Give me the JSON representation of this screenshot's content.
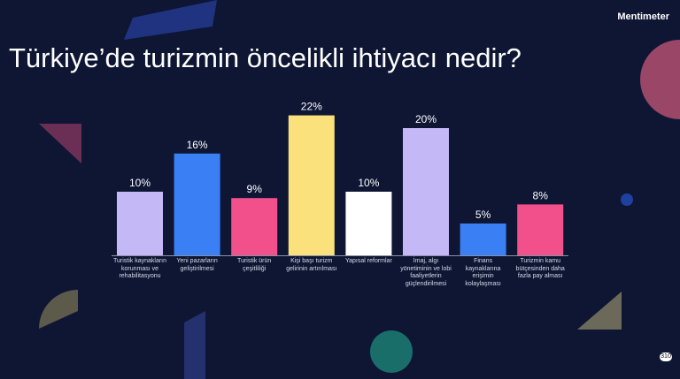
{
  "brand": "Mentimeter",
  "badge": "310",
  "chart_data": {
    "type": "bar",
    "title": "Türkiye’de turizmin öncelikli ihtiyacı nedir?",
    "categories": [
      "Turistik kaynakların korunması ve rehabilitasyonu",
      "Yeni pazarların geliştirilmesi",
      "Turistik ürün çeşitliliği",
      "Kişi başı turizm gelirinin artırılması",
      "Yapısal reformlar",
      "İmaj, algı yönetiminin ve lobi faaliyetlerin güçlendirilmesi",
      "Finans kaynaklarına erişimin kolaylaşması",
      "Turizmin kamu bütçesinden daha fazla pay alması"
    ],
    "values": [
      10,
      16,
      9,
      22,
      10,
      20,
      5,
      8
    ],
    "value_labels": [
      "10%",
      "16%",
      "9%",
      "22%",
      "10%",
      "20%",
      "5%",
      "8%"
    ],
    "colors": [
      "#c5b8f7",
      "#3b7ff5",
      "#f2508b",
      "#fbe17b",
      "#ffffff",
      "#c5b8f7",
      "#3b7ff5",
      "#f2508b"
    ]
  }
}
